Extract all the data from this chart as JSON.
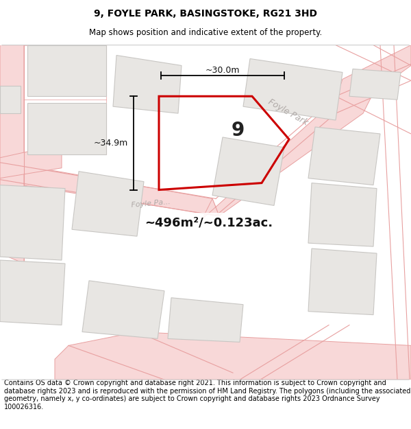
{
  "title": "9, FOYLE PARK, BASINGSTOKE, RG21 3HD",
  "subtitle": "Map shows position and indicative extent of the property.",
  "footer": "Contains OS data © Crown copyright and database right 2021. This information is subject to Crown copyright and database rights 2023 and is reproduced with the permission of HM Land Registry. The polygons (including the associated geometry, namely x, y co-ordinates) are subject to Crown copyright and database rights 2023 Ordnance Survey 100026316.",
  "area_label": "~496m²/~0.123ac.",
  "number_label": "9",
  "dim_width": "~30.0m",
  "dim_height": "~34.9m",
  "bg_color": "#f5f3f0",
  "plot_edge": "#cc0000",
  "road_color": "#f8d8d8",
  "road_edge": "#e8a0a0",
  "neighbor_fill": "#e8e6e3",
  "neighbor_edge": "#c8c6c3",
  "title_fontsize": 10,
  "subtitle_fontsize": 8.5,
  "footer_fontsize": 7.0,
  "road_label_color": "#b0aaa8",
  "road_label_size": 9
}
